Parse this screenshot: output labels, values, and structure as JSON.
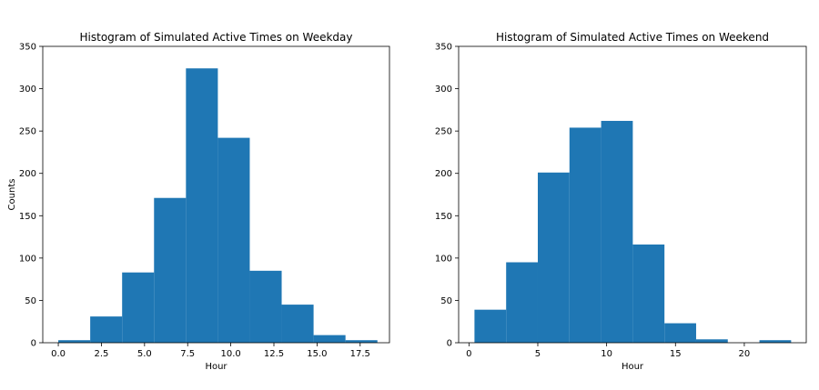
{
  "chart_data": [
    {
      "type": "bar",
      "title": "Histogram of Simulated Active Times on Weekday",
      "xlabel": "Hour",
      "ylabel": "Counts",
      "xlim": [
        -0.9,
        19.2
      ],
      "ylim": [
        0,
        350
      ],
      "grid": false,
      "color": "#1f77b4",
      "xticks": [
        0,
        2.5,
        5,
        7.5,
        10,
        12.5,
        15,
        17.5
      ],
      "xtick_labels": [
        "0.0",
        "2.5",
        "5.0",
        "7.5",
        "10.0",
        "12.5",
        "15.0",
        "17.5"
      ],
      "yticks": [
        0,
        50,
        100,
        150,
        200,
        250,
        300,
        350
      ],
      "ytick_labels": [
        "0",
        "50",
        "100",
        "150",
        "200",
        "250",
        "300",
        "350"
      ],
      "bins": [
        {
          "x0": 0.0,
          "x1": 1.85,
          "count": 3
        },
        {
          "x0": 1.85,
          "x1": 3.7,
          "count": 31
        },
        {
          "x0": 3.7,
          "x1": 5.55,
          "count": 83
        },
        {
          "x0": 5.55,
          "x1": 7.4,
          "count": 171
        },
        {
          "x0": 7.4,
          "x1": 9.25,
          "count": 324
        },
        {
          "x0": 9.25,
          "x1": 11.1,
          "count": 242
        },
        {
          "x0": 11.1,
          "x1": 12.95,
          "count": 85
        },
        {
          "x0": 12.95,
          "x1": 14.8,
          "count": 45
        },
        {
          "x0": 14.8,
          "x1": 16.65,
          "count": 9
        },
        {
          "x0": 16.65,
          "x1": 18.5,
          "count": 3
        }
      ]
    },
    {
      "type": "bar",
      "title": "Histogram of Simulated Active Times on Weekend",
      "xlabel": "Hour",
      "ylabel": "",
      "xlim": [
        -0.75,
        24.5
      ],
      "ylim": [
        0,
        350
      ],
      "grid": false,
      "color": "#1f77b4",
      "xticks": [
        0,
        5,
        10,
        15,
        20
      ],
      "xtick_labels": [
        "0",
        "5",
        "10",
        "15",
        "20"
      ],
      "yticks": [
        0,
        50,
        100,
        150,
        200,
        250,
        300,
        350
      ],
      "ytick_labels": [
        "0",
        "50",
        "100",
        "150",
        "200",
        "250",
        "300",
        "350"
      ],
      "bins": [
        {
          "x0": 0.4,
          "x1": 2.7,
          "count": 39
        },
        {
          "x0": 2.7,
          "x1": 5.0,
          "count": 95
        },
        {
          "x0": 5.0,
          "x1": 7.3,
          "count": 201
        },
        {
          "x0": 7.3,
          "x1": 9.6,
          "count": 254
        },
        {
          "x0": 9.6,
          "x1": 11.9,
          "count": 262
        },
        {
          "x0": 11.9,
          "x1": 14.2,
          "count": 116
        },
        {
          "x0": 14.2,
          "x1": 16.5,
          "count": 23
        },
        {
          "x0": 16.5,
          "x1": 18.8,
          "count": 4
        },
        {
          "x0": 18.8,
          "x1": 21.1,
          "count": 0
        },
        {
          "x0": 21.1,
          "x1": 23.4,
          "count": 3
        }
      ]
    }
  ]
}
